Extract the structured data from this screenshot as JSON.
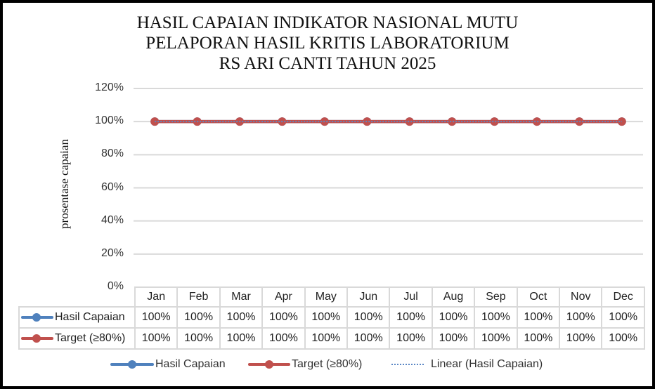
{
  "chart_data": {
    "type": "line",
    "title": "HASIL CAPAIAN INDIKATOR NASIONAL MUTU PELAPORAN HASIL KRITIS LABORATORIUM RS ARI CANTI TAHUN 2025",
    "title_lines": [
      "HASIL CAPAIAN INDIKATOR NASIONAL MUTU",
      "PELAPORAN HASIL KRITIS LABORATORIUM",
      "RS ARI CANTI TAHUN 2025"
    ],
    "xlabel": "",
    "ylabel": "prosentase capaian",
    "ylim": [
      0,
      120
    ],
    "yticks": [
      "0%",
      "20%",
      "40%",
      "60%",
      "80%",
      "100%",
      "120%"
    ],
    "grid": true,
    "legend_position": "bottom",
    "data_table": true,
    "categories": [
      "Jan",
      "Feb",
      "Mar",
      "Apr",
      "May",
      "Jun",
      "Jul",
      "Aug",
      "Sep",
      "Oct",
      "Nov",
      "Dec"
    ],
    "series": [
      {
        "name": "Hasil Capaian",
        "color": "#4f81bd",
        "values": [
          100,
          100,
          100,
          100,
          100,
          100,
          100,
          100,
          100,
          100,
          100,
          100
        ],
        "labels": [
          "100%",
          "100%",
          "100%",
          "100%",
          "100%",
          "100%",
          "100%",
          "100%",
          "100%",
          "100%",
          "100%",
          "100%"
        ]
      },
      {
        "name": "Target (≥80%)",
        "color": "#c0504d",
        "values": [
          100,
          100,
          100,
          100,
          100,
          100,
          100,
          100,
          100,
          100,
          100,
          100
        ],
        "labels": [
          "100%",
          "100%",
          "100%",
          "100%",
          "100%",
          "100%",
          "100%",
          "100%",
          "100%",
          "100%",
          "100%",
          "100%"
        ]
      }
    ],
    "trendline": {
      "name": "Linear (Hasil Capaian)",
      "type": "linear",
      "style": "dotted",
      "color": "#5b87c5"
    }
  },
  "legend": {
    "items": [
      "Hasil Capaian",
      "Target (≥80%)",
      "Linear (Hasil Capaian)"
    ]
  }
}
